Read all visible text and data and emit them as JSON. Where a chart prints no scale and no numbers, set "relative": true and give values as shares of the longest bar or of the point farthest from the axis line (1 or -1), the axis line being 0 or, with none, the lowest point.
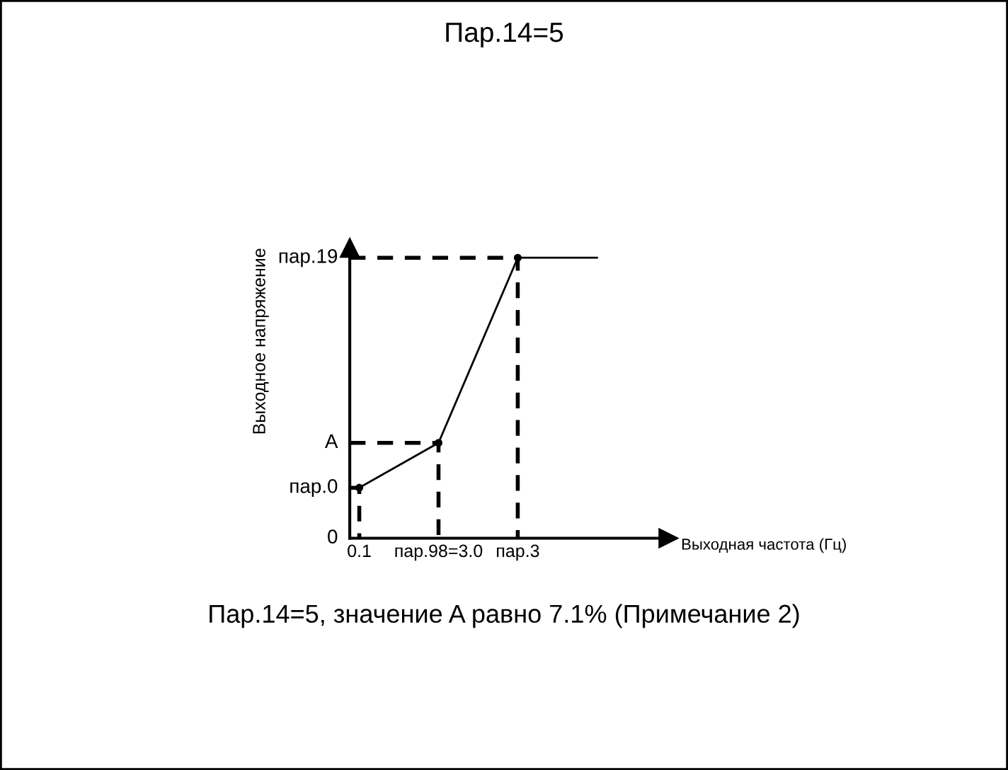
{
  "chart_data": {
    "type": "line",
    "title": "Пар.14=5",
    "xlabel": "Выходная частота (Гц)",
    "ylabel": "Выходное напряжение",
    "relative": true,
    "categories": [
      "0.1",
      "пар.98=3.0",
      "пар.3",
      null
    ],
    "series": [
      {
        "color": "#000000",
        "line_style": "solid",
        "values": [
          0.18,
          0.34,
          1,
          1
        ]
      },
      {
        "type": "lollipop",
        "color": "#000000",
        "line_style": "dashed",
        "values": [
          0.18,
          0.34,
          1,
          null
        ]
      }
    ],
    "annotations": [
      "0",
      "пар.0",
      "A",
      "пар.19",
      "Пар.14=5, значение A равно 7.1% (Примечание 2)"
    ],
    "grid": false,
    "legend": false
  }
}
